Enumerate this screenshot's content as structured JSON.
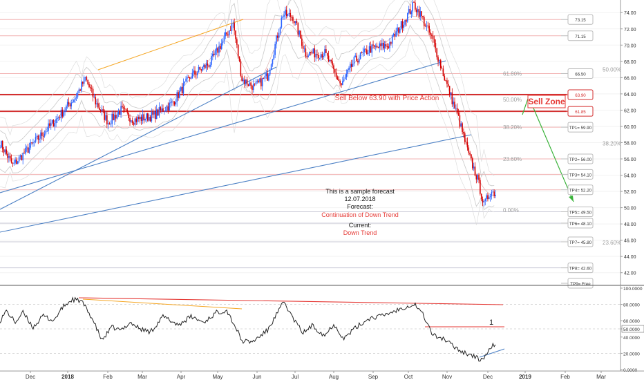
{
  "chart_data": [
    {
      "type": "candlestick",
      "panel": "price",
      "x_ticks": [
        "Dec",
        "2018",
        "Feb",
        "Mar",
        "Apr",
        "May",
        "Jun",
        "Jul",
        "Aug",
        "Sep",
        "Oct",
        "Nov",
        "Dec",
        "2019",
        "Feb",
        "Mar"
      ],
      "y_ticks": [
        "74.00",
        "72.00",
        "70.00",
        "68.00",
        "66.00",
        "64.00",
        "62.00",
        "60.00",
        "58.00",
        "56.00",
        "54.00",
        "52.00",
        "50.00",
        "48.00",
        "46.00",
        "44.00",
        "42.00"
      ],
      "ylim": [
        40.7,
        74.7
      ],
      "key_points": [
        {
          "t": 0,
          "v": 58.0
        },
        {
          "t": 10,
          "v": 55.2
        },
        {
          "t": 25,
          "v": 57.7
        },
        {
          "t": 45,
          "v": 61.0
        },
        {
          "t": 60,
          "v": 63.8
        },
        {
          "t": 67,
          "v": 65.9
        },
        {
          "t": 75,
          "v": 63.0
        },
        {
          "t": 85,
          "v": 60.5
        },
        {
          "t": 95,
          "v": 62.0
        },
        {
          "t": 105,
          "v": 60.8
        },
        {
          "t": 120,
          "v": 61.3
        },
        {
          "t": 135,
          "v": 62.8
        },
        {
          "t": 150,
          "v": 66.2
        },
        {
          "t": 165,
          "v": 67.8
        },
        {
          "t": 175,
          "v": 70.5
        },
        {
          "t": 183,
          "v": 72.7
        },
        {
          "t": 190,
          "v": 65.8
        },
        {
          "t": 200,
          "v": 64.8
        },
        {
          "t": 210,
          "v": 66.2
        },
        {
          "t": 222,
          "v": 73.8
        },
        {
          "t": 230,
          "v": 73.5
        },
        {
          "t": 240,
          "v": 69.0
        },
        {
          "t": 255,
          "v": 69.0
        },
        {
          "t": 268,
          "v": 65.0
        },
        {
          "t": 278,
          "v": 68.0
        },
        {
          "t": 290,
          "v": 69.5
        },
        {
          "t": 305,
          "v": 70.0
        },
        {
          "t": 318,
          "v": 73.2
        },
        {
          "t": 325,
          "v": 75.0
        },
        {
          "t": 330,
          "v": 73.8
        },
        {
          "t": 340,
          "v": 70.5
        },
        {
          "t": 350,
          "v": 65.5
        },
        {
          "t": 360,
          "v": 61.0
        },
        {
          "t": 368,
          "v": 56.5
        },
        {
          "t": 375,
          "v": 53.5
        },
        {
          "t": 380,
          "v": 50.3
        },
        {
          "t": 385,
          "v": 52.0
        },
        {
          "t": 389,
          "v": 51.8
        }
      ],
      "price_levels": [
        {
          "label": "73.15",
          "v": 73.15
        },
        {
          "label": "71.15",
          "v": 71.15
        },
        {
          "label": "66.50",
          "v": 66.5
        },
        {
          "label": "63.90",
          "v": 63.9,
          "emphasis": true
        },
        {
          "label": "61.85",
          "v": 61.85,
          "emphasis": true
        },
        {
          "label": "TP1= 59.90",
          "v": 59.9
        },
        {
          "label": "TP2= 56.00",
          "v": 56.0
        },
        {
          "label": "TP3= 54.10",
          "v": 54.1
        },
        {
          "label": "TP4= 52.20",
          "v": 52.2
        },
        {
          "label": "TP5= 49.50",
          "v": 49.5
        },
        {
          "label": "TP6= 48.10",
          "v": 48.1
        },
        {
          "label": "TP7= 45.80",
          "v": 45.8
        },
        {
          "label": "TP8= 42.60",
          "v": 42.6
        },
        {
          "label": "TP9= Free",
          "v": 40.7
        }
      ],
      "fib_labels_right": [
        {
          "text": "61.80%",
          "v": 66.5
        },
        {
          "text": "50.00%",
          "v": 63.3
        },
        {
          "text": "38.20%",
          "v": 59.9
        },
        {
          "text": "23.60%",
          "v": 56.0
        },
        {
          "text": "0.00%",
          "v": 49.7
        }
      ],
      "fib_labels_far": [
        {
          "text": "50.00%",
          "v": 67.0
        },
        {
          "text": "38.20%",
          "v": 57.9
        },
        {
          "text": "23.60%",
          "v": 45.7
        }
      ],
      "annotations": {
        "sell_below": "Sell Below 63.90 with Price Action",
        "sell_zone": "Sell Zone",
        "sample": "This is a sample forecast",
        "date": "12.07.2018",
        "forecast_label": "Forecast:",
        "forecast_value": "Continuation of Down Trend",
        "current_label": "Current:",
        "current_value": "Down Trend"
      }
    },
    {
      "type": "line",
      "panel": "oscillator",
      "y_ticks": [
        "100.0000",
        "80.0000",
        "60.0000",
        "50.0000",
        "40.0000",
        "20.0000",
        "0.0000"
      ],
      "ylim": [
        0,
        100
      ],
      "marker": "1",
      "current_value": "50.0000",
      "key_points": [
        {
          "t": 0,
          "v": 60
        },
        {
          "t": 5,
          "v": 72
        },
        {
          "t": 12,
          "v": 58
        },
        {
          "t": 18,
          "v": 70
        },
        {
          "t": 26,
          "v": 52
        },
        {
          "t": 34,
          "v": 66
        },
        {
          "t": 42,
          "v": 60
        },
        {
          "t": 50,
          "v": 78
        },
        {
          "t": 57,
          "v": 86
        },
        {
          "t": 64,
          "v": 84
        },
        {
          "t": 72,
          "v": 64
        },
        {
          "t": 80,
          "v": 36
        },
        {
          "t": 88,
          "v": 52
        },
        {
          "t": 95,
          "v": 48
        },
        {
          "t": 102,
          "v": 58
        },
        {
          "t": 110,
          "v": 50
        },
        {
          "t": 118,
          "v": 46
        },
        {
          "t": 128,
          "v": 65
        },
        {
          "t": 140,
          "v": 55
        },
        {
          "t": 150,
          "v": 65
        },
        {
          "t": 160,
          "v": 58
        },
        {
          "t": 170,
          "v": 70
        },
        {
          "t": 178,
          "v": 73
        },
        {
          "t": 185,
          "v": 52
        },
        {
          "t": 190,
          "v": 35
        },
        {
          "t": 198,
          "v": 34
        },
        {
          "t": 210,
          "v": 48
        },
        {
          "t": 218,
          "v": 70
        },
        {
          "t": 223,
          "v": 83
        },
        {
          "t": 230,
          "v": 63
        },
        {
          "t": 238,
          "v": 45
        },
        {
          "t": 245,
          "v": 54
        },
        {
          "t": 255,
          "v": 42
        },
        {
          "t": 262,
          "v": 56
        },
        {
          "t": 270,
          "v": 38
        },
        {
          "t": 278,
          "v": 50
        },
        {
          "t": 290,
          "v": 63
        },
        {
          "t": 300,
          "v": 66
        },
        {
          "t": 310,
          "v": 72
        },
        {
          "t": 320,
          "v": 78
        },
        {
          "t": 326,
          "v": 80
        },
        {
          "t": 332,
          "v": 68
        },
        {
          "t": 340,
          "v": 42
        },
        {
          "t": 348,
          "v": 38
        },
        {
          "t": 355,
          "v": 30
        },
        {
          "t": 363,
          "v": 22
        },
        {
          "t": 370,
          "v": 18
        },
        {
          "t": 377,
          "v": 12
        },
        {
          "t": 382,
          "v": 17
        },
        {
          "t": 386,
          "v": 29
        },
        {
          "t": 389,
          "v": 31
        }
      ]
    }
  ]
}
